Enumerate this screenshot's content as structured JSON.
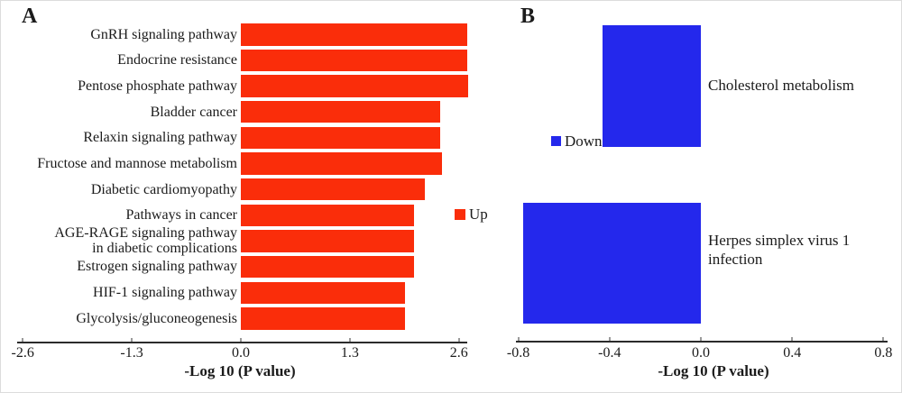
{
  "figure": {
    "panels": [
      {
        "letter": "A"
      },
      {
        "letter": "B"
      }
    ]
  },
  "chart_data": [
    {
      "type": "bar",
      "panel": "A",
      "orientation": "horizontal",
      "title": "",
      "xlabel": "-Log 10 (P value)",
      "categories": [
        "GnRH signaling pathway",
        "Endocrine resistance",
        "Pentose phosphate pathway",
        "Bladder cancer",
        "Relaxin signaling pathway",
        "Fructose and mannose metabolism",
        "Diabetic cardiomyopathy",
        "Pathways in cancer",
        "AGE-RAGE signaling pathway\nin diabetic complications",
        "Estrogen signaling pathway",
        "HIF-1 signaling pathway",
        "Glycolysis/gluconeogenesis"
      ],
      "values": [
        2.7,
        2.7,
        2.71,
        2.38,
        2.38,
        2.4,
        2.19,
        2.06,
        2.06,
        2.06,
        1.96,
        1.96
      ],
      "xlim": [
        -2.6,
        2.6
      ],
      "xticks": [
        -2.6,
        -1.3,
        0,
        1.3,
        2.6
      ],
      "xtick_labels": [
        "-2.6",
        "-1.3",
        "0.0",
        "1.3",
        "2.6"
      ],
      "legend": {
        "label": "Up",
        "color": "#fa2d0a",
        "position": "right-middle"
      },
      "grid": false
    },
    {
      "type": "bar",
      "panel": "B",
      "orientation": "horizontal",
      "title": "",
      "xlabel": "-Log 10 (P value)",
      "categories": [
        "Cholesterol metabolism",
        "Herpes simplex virus 1\ninfection"
      ],
      "values": [
        -0.43,
        -0.78
      ],
      "xlim": [
        -0.8,
        0.8
      ],
      "xticks": [
        -0.8,
        -0.4,
        0,
        0.4,
        0.8
      ],
      "xtick_labels": [
        "-0.8",
        "-0.4",
        "0.0",
        "0.4",
        "0.8"
      ],
      "legend": {
        "label": "Down",
        "color": "#2428ec",
        "position": "left-middle"
      },
      "grid": false
    }
  ]
}
